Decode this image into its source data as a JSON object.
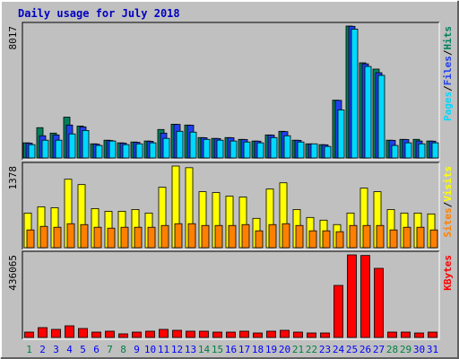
{
  "chart_data": [
    {
      "type": "bar",
      "title": "Daily usage for July 2018",
      "legend_separator": "/",
      "ylim": [
        0,
        8017
      ],
      "yticks": [
        8017
      ],
      "series": [
        {
          "name": "Hits",
          "color": "#00805c",
          "values": [
            920,
            1840,
            1510,
            2480,
            1940,
            860,
            1080,
            920,
            970,
            1030,
            1730,
            2050,
            2000,
            1240,
            1190,
            1240,
            1130,
            1030,
            1400,
            1620,
            1080,
            860,
            810,
            3510,
            8017,
            5780,
            5400,
            1080,
            1130,
            1130,
            1030
          ]
        },
        {
          "name": "Files",
          "color": "#2040f0",
          "values": [
            900,
            1350,
            1400,
            2000,
            1890,
            840,
            1060,
            900,
            950,
            1010,
            1510,
            2040,
            1990,
            1230,
            1180,
            1230,
            1120,
            1020,
            1390,
            1600,
            1070,
            850,
            800,
            3500,
            8000,
            5720,
            5180,
            1070,
            1120,
            1030,
            1020
          ]
        },
        {
          "name": "Pages",
          "color": "#00d8ff",
          "values": [
            810,
            1080,
            1080,
            1460,
            1670,
            760,
            1030,
            810,
            860,
            920,
            1190,
            1620,
            1570,
            1130,
            1080,
            1030,
            970,
            920,
            1240,
            1350,
            970,
            860,
            700,
            2920,
            7830,
            5560,
            5020,
            760,
            920,
            860,
            920
          ]
        }
      ]
    },
    {
      "type": "bar",
      "ylim": [
        0,
        1378
      ],
      "yticks": [
        1378
      ],
      "legend_separator": "/",
      "series": [
        {
          "name": "Visits",
          "color": "#ffff00",
          "values": [
            585,
            690,
            675,
            1155,
            1065,
            660,
            615,
            615,
            645,
            585,
            1020,
            1378,
            1350,
            945,
            930,
            870,
            855,
            495,
            990,
            1095,
            645,
            510,
            465,
            390,
            585,
            1005,
            945,
            645,
            585,
            585,
            570
          ]
        },
        {
          "name": "Sites",
          "color": "#ff8000",
          "values": [
            300,
            360,
            345,
            405,
            390,
            345,
            330,
            345,
            345,
            345,
            375,
            405,
            405,
            375,
            375,
            375,
            390,
            285,
            390,
            405,
            375,
            285,
            285,
            270,
            375,
            375,
            375,
            300,
            345,
            345,
            300
          ]
        }
      ]
    },
    {
      "type": "bar",
      "ylim": [
        0,
        436065
      ],
      "yticks": [
        436065
      ],
      "categories": [
        "1",
        "2",
        "3",
        "4",
        "5",
        "6",
        "7",
        "8",
        "9",
        "10",
        "11",
        "12",
        "13",
        "14",
        "15",
        "16",
        "17",
        "18",
        "19",
        "20",
        "21",
        "22",
        "23",
        "24",
        "25",
        "26",
        "27",
        "28",
        "29",
        "30",
        "31"
      ],
      "category_colors": [
        "#008040",
        "#0000ff",
        "#0000ff",
        "#0000ff",
        "#0000ff",
        "#0000ff",
        "#008040",
        "#008040",
        "#0000ff",
        "#0000ff",
        "#0000ff",
        "#0000ff",
        "#0000ff",
        "#008040",
        "#008040",
        "#0000ff",
        "#0000ff",
        "#0000ff",
        "#0000ff",
        "#0000ff",
        "#008040",
        "#008040",
        "#0000ff",
        "#0000ff",
        "#0000ff",
        "#0000ff",
        "#0000ff",
        "#008040",
        "#008040",
        "#0000ff",
        "#0000ff"
      ],
      "series": [
        {
          "name": "KBytes",
          "color": "#ff0000",
          "values": [
            28400,
            52100,
            42700,
            61600,
            47400,
            28400,
            33200,
            19000,
            28400,
            33200,
            42700,
            37900,
            33200,
            33200,
            28400,
            28400,
            33200,
            23700,
            33200,
            37900,
            28400,
            23700,
            23700,
            274900,
            436065,
            433000,
            365000,
            28400,
            28400,
            23700,
            28400
          ]
        }
      ]
    }
  ]
}
